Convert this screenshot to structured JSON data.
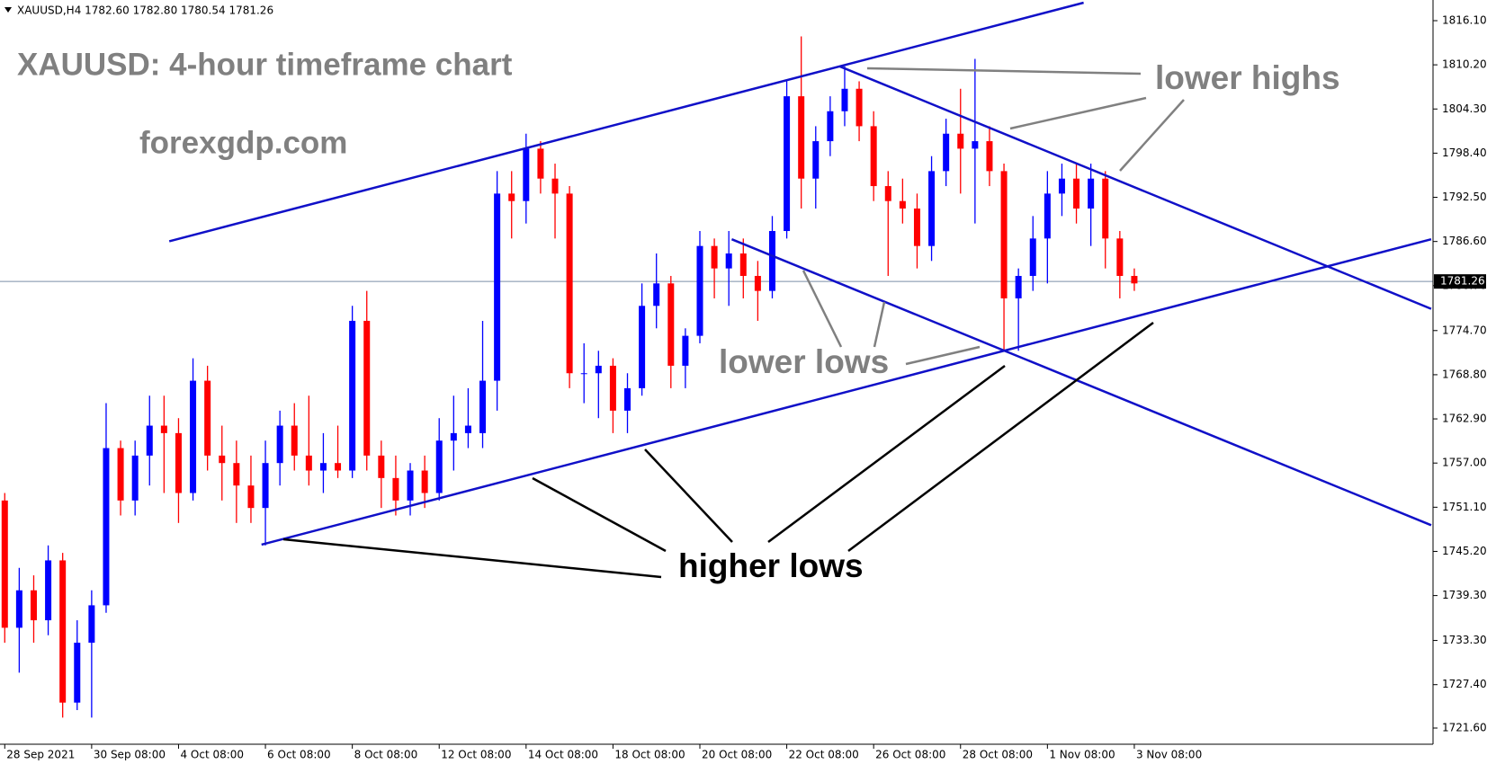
{
  "chart_data": {
    "type": "candlestick",
    "header": "XAUUSD,H4  1782.60 1782.80 1780.54 1781.26",
    "title": "XAUUSD: 4-hour timeframe chart",
    "subtitle": "forexgdp.com",
    "annotations": [
      "lower highs",
      "lower lows",
      "higher lows"
    ],
    "up_color": "#0000ff",
    "down_color": "#ff0000",
    "trendline_color": "#1010c8",
    "price_line_color": "#7b8fa8",
    "last_price": 1781.26,
    "open": [
      1752,
      1735,
      1740,
      1736,
      1744,
      1725,
      1733,
      1738,
      1759,
      1752,
      1758,
      1762,
      1761,
      1753,
      1768,
      1758,
      1757,
      1754,
      1751,
      1757,
      1762,
      1758,
      1756,
      1757,
      1756,
      1776,
      1758,
      1755,
      1752,
      1756,
      1753,
      1760,
      1761,
      1761,
      1768,
      1793,
      1792,
      1799,
      1795,
      1793,
      1769,
      1769,
      1770,
      1764,
      1767,
      1778,
      1781,
      1770,
      1774,
      1786,
      1783,
      1785,
      1782,
      1780,
      1788,
      1806,
      1795,
      1800,
      1804,
      1807,
      1802,
      1794,
      1792,
      1791,
      1786,
      1796,
      1801,
      1799,
      1800,
      1796,
      1779,
      1782,
      1787,
      1793,
      1795,
      1791,
      1795,
      1787,
      1782
    ],
    "high": [
      1753,
      1743,
      1742,
      1746,
      1745,
      1736,
      1740,
      1765,
      1760,
      1760,
      1766,
      1766,
      1763,
      1771,
      1770,
      1762,
      1760,
      1758,
      1760,
      1764,
      1765,
      1766,
      1761,
      1762,
      1778,
      1780,
      1760,
      1758,
      1757,
      1758,
      1763,
      1766,
      1767,
      1776,
      1796,
      1796,
      1801,
      1800,
      1797,
      1794,
      1773,
      1772,
      1771,
      1769,
      1781,
      1785,
      1782,
      1775,
      1788,
      1787,
      1788,
      1787,
      1784,
      1790,
      1808,
      1814,
      1802,
      1806,
      1810,
      1808,
      1804,
      1796,
      1795,
      1793,
      1798,
      1803,
      1807,
      1811,
      1802,
      1797,
      1783,
      1790,
      1796,
      1797,
      1797,
      1797,
      1796,
      1788,
      1783
    ],
    "low": [
      1733,
      1729,
      1733,
      1734,
      1723,
      1724,
      1723,
      1737,
      1750,
      1750,
      1754,
      1753,
      1749,
      1752,
      1756,
      1752,
      1749,
      1749,
      1746,
      1754,
      1756,
      1754,
      1753,
      1755,
      1755,
      1756,
      1751,
      1750,
      1750,
      1751,
      1752,
      1756,
      1759,
      1759,
      1764,
      1787,
      1789,
      1793,
      1787,
      1767,
      1765,
      1763,
      1761,
      1761,
      1766,
      1775,
      1767,
      1767,
      1773,
      1779,
      1778,
      1779,
      1776,
      1779,
      1787,
      1791,
      1791,
      1798,
      1802,
      1800,
      1792,
      1782,
      1789,
      1783,
      1784,
      1794,
      1793,
      1789,
      1794,
      1772,
      1772,
      1780,
      1781,
      1790,
      1789,
      1786,
      1783,
      1779,
      1780
    ],
    "close": [
      1735,
      1740,
      1736,
      1744,
      1725,
      1733,
      1738,
      1759,
      1752,
      1758,
      1762,
      1761,
      1753,
      1768,
      1758,
      1757,
      1754,
      1751,
      1757,
      1762,
      1758,
      1756,
      1757,
      1756,
      1776,
      1758,
      1755,
      1752,
      1756,
      1753,
      1760,
      1761,
      1762,
      1768,
      1793,
      1792,
      1799,
      1795,
      1793,
      1769,
      1769,
      1770,
      1764,
      1767,
      1778,
      1781,
      1770,
      1774,
      1786,
      1783,
      1785,
      1782,
      1780,
      1788,
      1806,
      1795,
      1800,
      1804,
      1807,
      1802,
      1794,
      1792,
      1791,
      1786,
      1796,
      1801,
      1799,
      1800,
      1796,
      1779,
      1782,
      1787,
      1793,
      1795,
      1791,
      1795,
      1787,
      1782,
      1781
    ],
    "xticks": [
      {
        "value": 0,
        "label": "28 Sep 2021"
      },
      {
        "value": 6,
        "label": "30 Sep 08:00"
      },
      {
        "value": 12,
        "label": "4 Oct 08:00"
      },
      {
        "value": 18,
        "label": "6 Oct 08:00"
      },
      {
        "value": 24,
        "label": "8 Oct 08:00"
      },
      {
        "value": 30,
        "label": "12 Oct 08:00"
      },
      {
        "value": 36,
        "label": "14 Oct 08:00"
      },
      {
        "value": 42,
        "label": "18 Oct 08:00"
      },
      {
        "value": 48,
        "label": "20 Oct 08:00"
      },
      {
        "value": 54,
        "label": "22 Oct 08:00"
      },
      {
        "value": 60,
        "label": "26 Oct 08:00"
      },
      {
        "value": 66,
        "label": "28 Oct 08:00"
      },
      {
        "value": 72,
        "label": "1 Nov 08:00"
      },
      {
        "value": 78,
        "label": "3 Nov 08:00"
      }
    ],
    "ylim": [
      1719.44,
      1818.86
    ],
    "yticks": [
      {
        "value": 1816.1,
        "label": "1816.10"
      },
      {
        "value": 1810.2,
        "label": "1810.20"
      },
      {
        "value": 1804.3,
        "label": "1804.30"
      },
      {
        "value": 1798.4,
        "label": "1798.40"
      },
      {
        "value": 1792.5,
        "label": "1792.50"
      },
      {
        "value": 1786.6,
        "label": "1786.60"
      },
      {
        "value": 1780.7,
        "label": "1780.70"
      },
      {
        "value": 1774.7,
        "label": "1774.70"
      },
      {
        "value": 1768.8,
        "label": "1768.80"
      },
      {
        "value": 1762.9,
        "label": "1762.90"
      },
      {
        "value": 1757,
        "label": "1757.00"
      },
      {
        "value": 1751.1,
        "label": "1751.10"
      },
      {
        "value": 1745.2,
        "label": "1745.20"
      },
      {
        "value": 1739.3,
        "label": "1739.30"
      },
      {
        "value": 1733.3,
        "label": "1733.30"
      },
      {
        "value": 1727.4,
        "label": "1727.40"
      },
      {
        "value": 1721.6,
        "label": "1721.60"
      }
    ],
    "trendlines": [
      {
        "x": [
          11.36,
          74.5
        ],
        "y": [
          1786.63,
          1818.5
        ]
      },
      {
        "x": [
          57.65,
          98.5
        ],
        "y": [
          1810.0,
          1777.6
        ]
      },
      {
        "x": [
          17.73,
          98.5
        ],
        "y": [
          1746.1,
          1786.9
        ]
      },
      {
        "x": [
          50.2,
          98.5
        ],
        "y": [
          1786.9,
          1748.7
        ]
      }
    ]
  }
}
